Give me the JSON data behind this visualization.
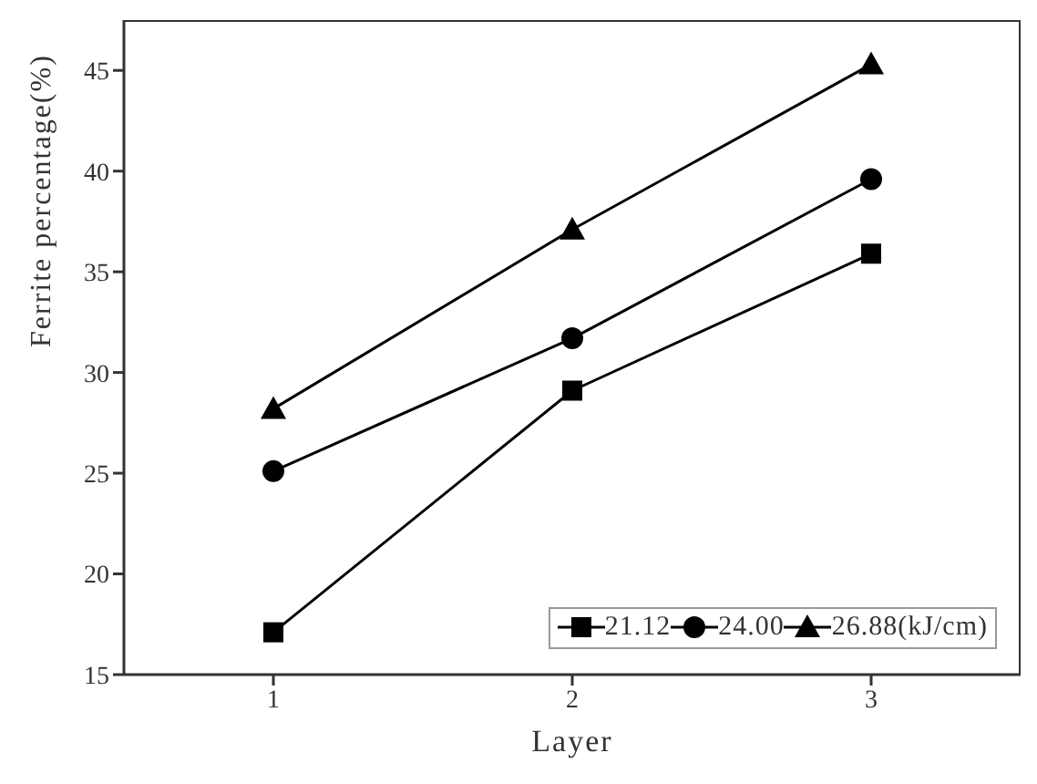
{
  "chart_data": {
    "type": "line",
    "xlabel": "Layer",
    "ylabel": "Ferrite percentage(%)",
    "x": [
      1,
      2,
      3
    ],
    "xlim": [
      0.5,
      3.5
    ],
    "xticks": [
      1,
      2,
      3
    ],
    "ylim": [
      15,
      47.5
    ],
    "yticks": [
      15,
      20,
      25,
      30,
      35,
      40,
      45
    ],
    "series": [
      {
        "name": "21.12",
        "color": "#000000",
        "marker": "square",
        "values": [
          17.1,
          29.1,
          35.9
        ]
      },
      {
        "name": "24.00",
        "color": "#000000",
        "marker": "circle",
        "values": [
          25.1,
          31.7,
          39.6
        ]
      },
      {
        "name": "26.88(kJ/cm)",
        "color": "#000000",
        "marker": "triangle",
        "values": [
          28.2,
          37.1,
          45.3
        ]
      }
    ],
    "legend": "bottom right",
    "grid": false,
    "line_style": "solid"
  }
}
